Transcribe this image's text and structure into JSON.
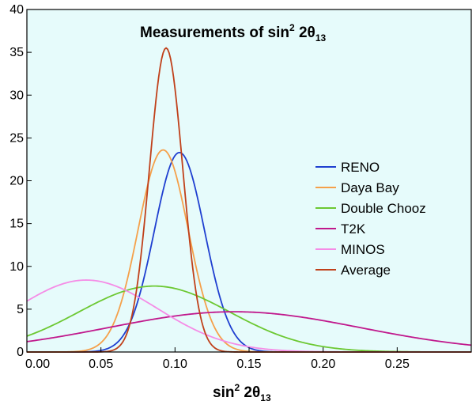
{
  "chart_data": {
    "type": "line",
    "title": {
      "main": "Measurements of sin",
      "sup": "2",
      "mid": " 2θ",
      "sub": "13"
    },
    "xlabel": {
      "main": "sin",
      "sup": "2",
      "mid": " 2θ",
      "sub": "13"
    },
    "ylabel": "",
    "xlim": [
      0.0,
      0.3
    ],
    "ylim": [
      0,
      40
    ],
    "xticks": [
      0.0,
      0.05,
      0.1,
      0.15,
      0.2,
      0.25
    ],
    "xtick_labels": [
      "0.00",
      "0.05",
      "0.10",
      "0.15",
      "0.20",
      "0.25"
    ],
    "yticks": [
      0,
      5,
      10,
      15,
      20,
      25,
      30,
      35,
      40
    ],
    "ytick_labels": [
      "0",
      "5",
      "10",
      "15",
      "20",
      "25",
      "30",
      "35",
      "40"
    ],
    "background_color": "#e6fbfb",
    "legend_position": "right",
    "series": [
      {
        "name": "RENO",
        "color": "#1f3fd0",
        "peak_x": 0.103,
        "peak_y": 23.3,
        "sigma": 0.017
      },
      {
        "name": "Daya Bay",
        "color": "#f5a04a",
        "peak_x": 0.092,
        "peak_y": 23.6,
        "sigma": 0.0169
      },
      {
        "name": "Double Chooz",
        "color": "#6cc832",
        "peak_x": 0.086,
        "peak_y": 7.7,
        "sigma": 0.051
      },
      {
        "name": "T2K",
        "color": "#c0188c",
        "peak_x": 0.14,
        "peak_y": 4.7,
        "sigma": 0.085
      },
      {
        "name": "MINOS",
        "color": "#f58ce6",
        "peak_x": 0.04,
        "peak_y": 8.4,
        "sigma": 0.048
      },
      {
        "name": "Average",
        "color": "#c0401a",
        "peak_x": 0.094,
        "peak_y": 35.5,
        "sigma": 0.0112
      }
    ]
  }
}
